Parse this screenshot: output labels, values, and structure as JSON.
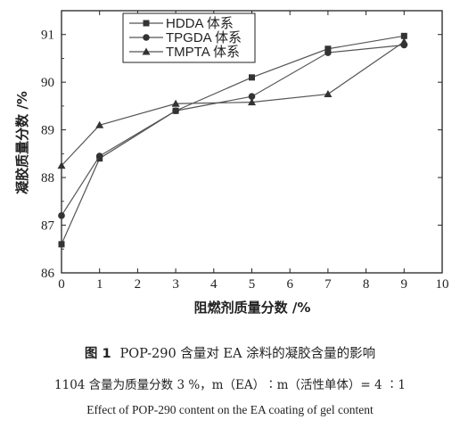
{
  "chart_data": {
    "type": "line",
    "title": "",
    "xlabel": "阻燃剂质量分数 /%",
    "ylabel": "凝胶质量分数 /%",
    "xlim": [
      0,
      10
    ],
    "ylim": [
      86,
      91.5
    ],
    "x_ticks": [
      "0",
      "1",
      "2",
      "3",
      "4",
      "5",
      "6",
      "7",
      "8",
      "9",
      "10"
    ],
    "y_ticks": [
      "86",
      "87",
      "88",
      "89",
      "90",
      "91"
    ],
    "x_tick_values": [
      0,
      1,
      2,
      3,
      4,
      5,
      6,
      7,
      8,
      9,
      10
    ],
    "y_tick_values": [
      86,
      87,
      88,
      89,
      90,
      91
    ],
    "x": [
      0,
      1,
      3,
      5,
      7,
      9
    ],
    "legend_position": "top-left",
    "grid": false,
    "series": [
      {
        "name": "HDDA 体系",
        "marker": "square",
        "values": [
          86.6,
          88.4,
          89.4,
          90.1,
          90.7,
          90.97
        ]
      },
      {
        "name": "TPGDA 体系",
        "marker": "circle",
        "values": [
          87.2,
          88.45,
          89.4,
          89.7,
          90.62,
          90.78
        ]
      },
      {
        "name": "TMPTA 体系",
        "marker": "triangle",
        "values": [
          88.25,
          89.1,
          89.55,
          89.58,
          89.75,
          90.85
        ]
      }
    ]
  },
  "caption": {
    "figure_label": "图 1",
    "title_cn": "POP-290 含量对 EA 涂料的凝胶含量的影响",
    "note": "1104 含量为质量分数 3 %，m（EA）∶m（活性单体）= 4 ∶1",
    "title_en": "Effect of POP-290 content on the EA coating of gel content"
  },
  "colors": {
    "line": "#555555",
    "marker": "#333333",
    "axis": "#222222"
  }
}
